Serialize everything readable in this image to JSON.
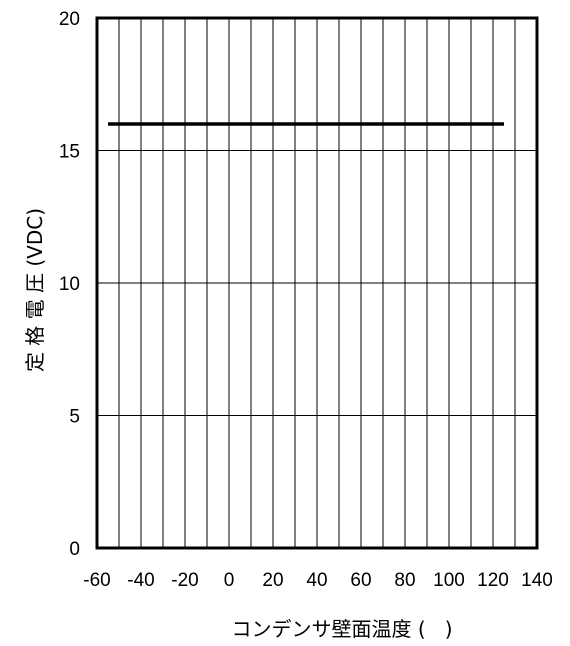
{
  "chart_data": {
    "type": "line",
    "title": "",
    "xlabel": "コンデンサ壁面温度 (   )",
    "ylabel": "定 格 電 圧 (VDC)",
    "xlim": [
      -60,
      140
    ],
    "ylim": [
      0,
      20
    ],
    "x_ticks": [
      -60,
      -40,
      -20,
      0,
      20,
      40,
      60,
      80,
      100,
      120,
      140
    ],
    "x_tick_labels": [
      "-60",
      "-40",
      "-20",
      "0",
      "20",
      "40",
      "60",
      "80",
      "100",
      "120",
      "140"
    ],
    "y_ticks": [
      0,
      5,
      10,
      15,
      20
    ],
    "y_tick_labels": [
      "0",
      "5",
      "10",
      "15",
      "20"
    ],
    "vertical_grid_step": 10,
    "horizontal_grid_step": 5,
    "grid": true,
    "legend": "none",
    "series": [
      {
        "x": [
          -55,
          125
        ],
        "y": [
          16,
          16
        ],
        "color": "#000000"
      }
    ]
  }
}
